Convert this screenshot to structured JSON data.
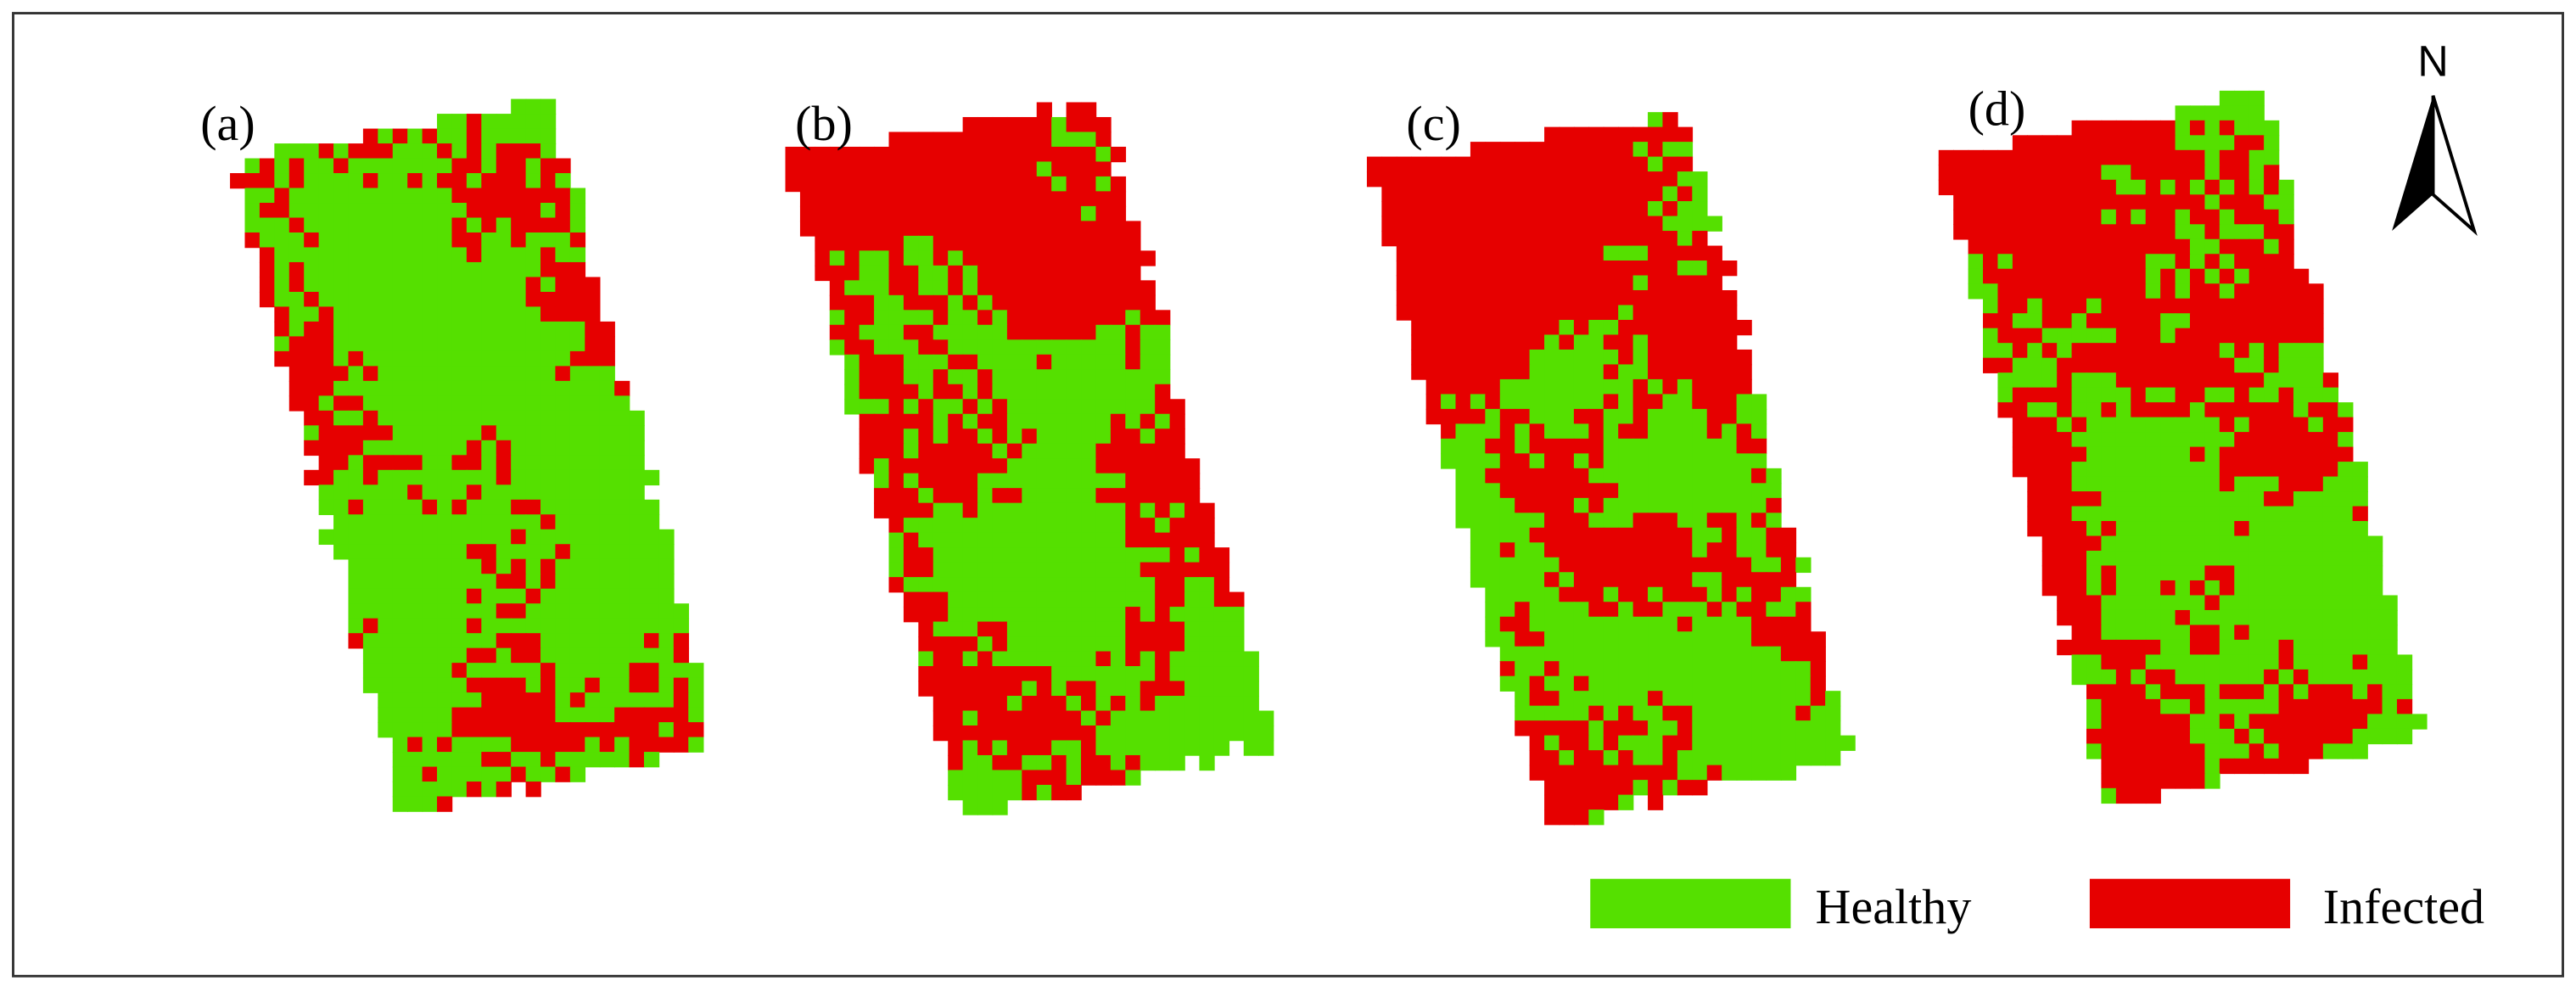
{
  "panels": [
    {
      "label": "(a)"
    },
    {
      "label": "(b)"
    },
    {
      "label": "(c)"
    },
    {
      "label": "(d)"
    }
  ],
  "legend": [
    {
      "label": "Healthy",
      "color": "#55e000"
    },
    {
      "label": "Infected",
      "color": "#e60000"
    }
  ],
  "north_arrow": "N"
}
